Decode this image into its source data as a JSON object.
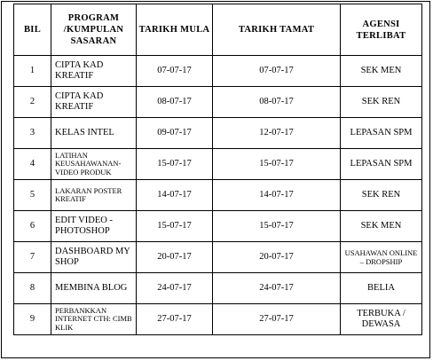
{
  "table": {
    "headers": {
      "bil": "BIL",
      "program_line1": "PROGRAM",
      "program_line2": "/KUMPULAN",
      "program_line3": "SASARAN",
      "mula": "TARIKH MULA",
      "tamat": "TARIKH TAMAT",
      "agensi_line1": "AGENSI",
      "agensi_line2": "TERLIBAT"
    },
    "rows": [
      {
        "bil": "1",
        "program": "CIPTA KAD KREATIF",
        "mula": "07-07-17",
        "tamat": "07-07-17",
        "agensi": "SEK MEN"
      },
      {
        "bil": "2",
        "program": "CIPTA KAD KREATIF",
        "mula": "08-07-17",
        "tamat": "08-07-17",
        "agensi": "SEK REN"
      },
      {
        "bil": "3",
        "program": "KELAS INTEL",
        "mula": "09-07-17",
        "tamat": "12-07-17",
        "agensi": "LEPASAN SPM"
      },
      {
        "bil": "4",
        "program": "LATIHAN KEUSAHAWANAN-VIDEO PRODUK",
        "mula": "15-07-17",
        "tamat": "15-07-17",
        "agensi": "LEPASAN SPM"
      },
      {
        "bil": "5",
        "program": "LAKARAN POSTER KREATIF",
        "mula": "14-07-17",
        "tamat": "14-07-17",
        "agensi": "SEK REN"
      },
      {
        "bil": "6",
        "program": "EDIT VIDEO - PHOTOSHOP",
        "mula": "15-07-17",
        "tamat": "15-07-17",
        "agensi": "SEK MEN"
      },
      {
        "bil": "7",
        "program": "DASHBOARD MY SHOP",
        "mula": "20-07-17",
        "tamat": "20-07-17",
        "agensi": "USAHAWAN ONLINE – DROPSHIP"
      },
      {
        "bil": "8",
        "program": "MEMBINA BLOG",
        "mula": "24-07-17",
        "tamat": "24-07-17",
        "agensi": "BELIA"
      },
      {
        "bil": "9",
        "program": "PERBANKKAN INTERNET CTH: CIMB KLIK",
        "mula": "27-07-17",
        "tamat": "27-07-17",
        "agensi": "TERBUKA / DEWASA"
      }
    ]
  }
}
